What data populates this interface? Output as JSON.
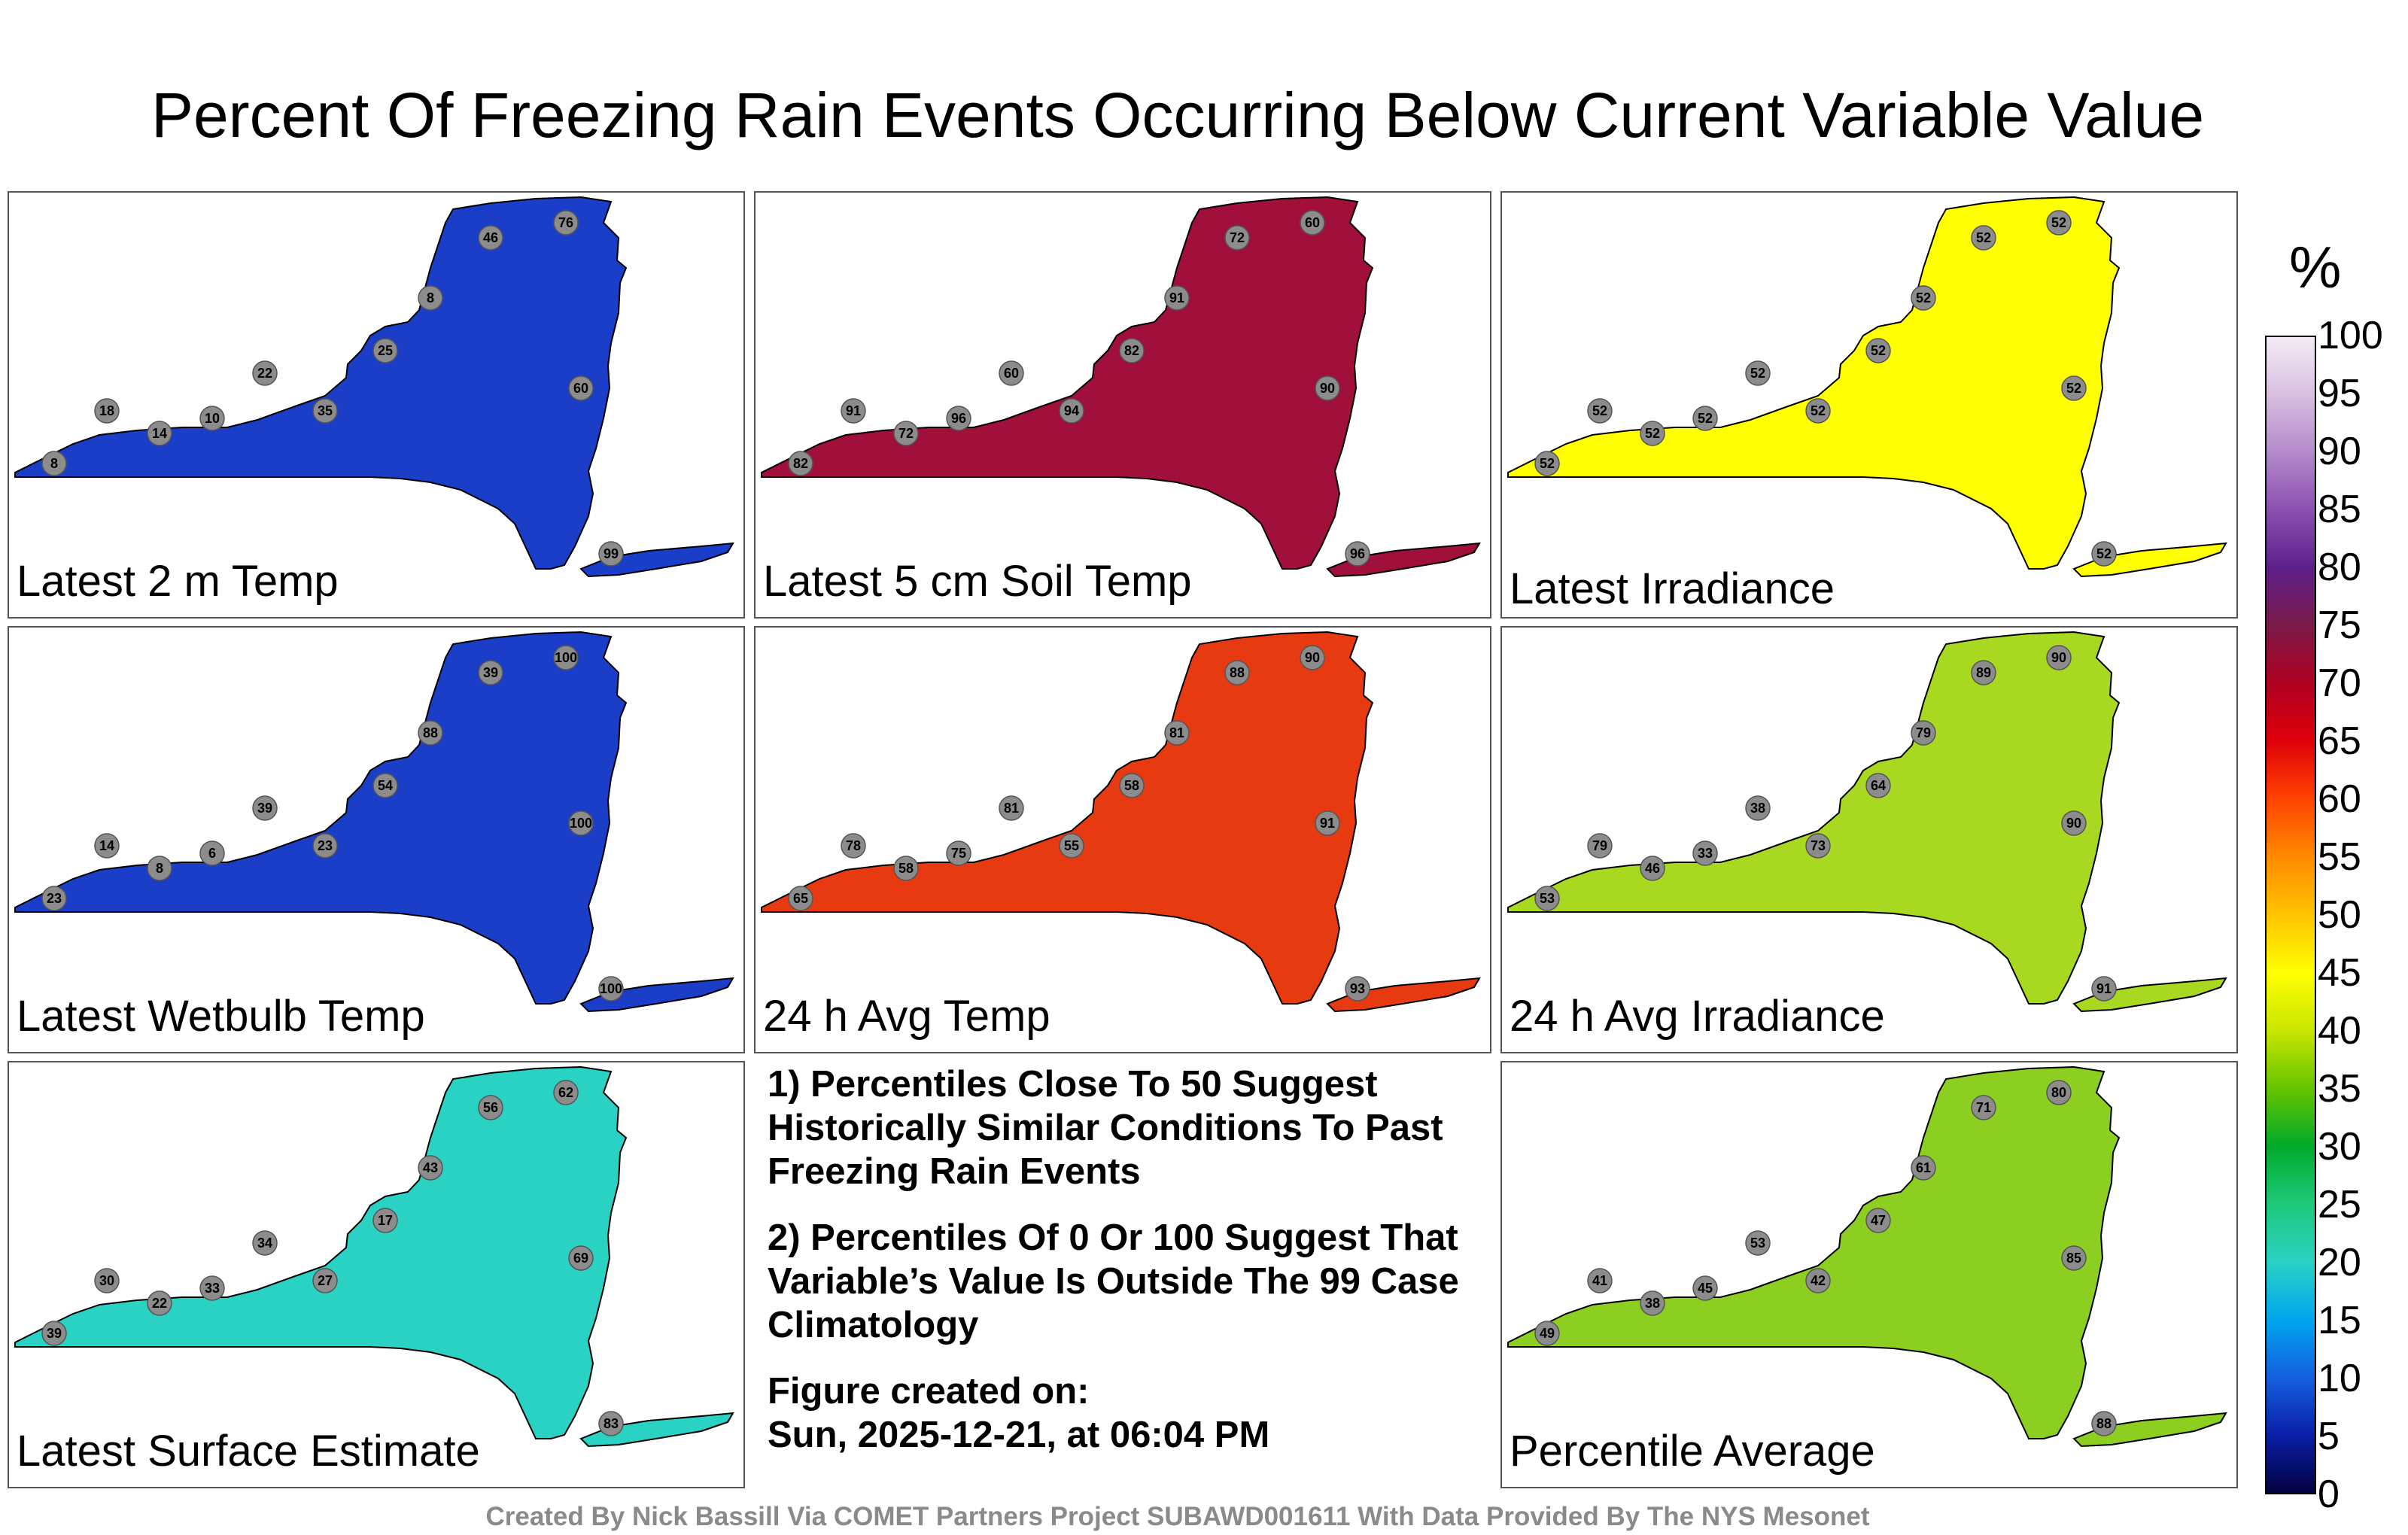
{
  "title": "Percent Of Freezing Rain Events Occurring Below Current Variable Value",
  "colorbar": {
    "unit": "%",
    "ticks": [
      "100",
      "95",
      "90",
      "85",
      "80",
      "75",
      "70",
      "65",
      "60",
      "55",
      "50",
      "45",
      "40",
      "35",
      "30",
      "25",
      "20",
      "15",
      "10",
      "5",
      "0"
    ],
    "colors": [
      "#f4ecf6",
      "#d8bfe0",
      "#b38acb",
      "#8a4fb0",
      "#5e1f8a",
      "#7a1a46",
      "#b00020",
      "#e0000a",
      "#ff4400",
      "#ff8a00",
      "#ffc400",
      "#ffff00",
      "#c8e600",
      "#66c400",
      "#00aa2a",
      "#1ec87a",
      "#2ad2c4",
      "#00a6ee",
      "#1460e0",
      "#0a1ea6",
      "#020240"
    ]
  },
  "panels": [
    {
      "label": "Latest 2 m Temp",
      "fill": "#1a3ec8",
      "stations": [
        "8",
        "18",
        "14",
        "10",
        "22",
        "35",
        "25",
        "8",
        "46",
        "76",
        "60",
        "99"
      ]
    },
    {
      "label": "Latest 5 cm Soil Temp",
      "fill": "#a0103a",
      "stations": [
        "82",
        "91",
        "72",
        "96",
        "60",
        "94",
        "82",
        "91",
        "72",
        "60",
        "90",
        "96"
      ]
    },
    {
      "label": "Latest Irradiance",
      "fill": "#ffff00",
      "stations": [
        "52",
        "52",
        "52",
        "52",
        "52",
        "52",
        "52",
        "52",
        "52",
        "52",
        "52",
        "52"
      ]
    },
    {
      "label": "Latest Wetbulb Temp",
      "fill": "#1a3ec8",
      "stations": [
        "23",
        "14",
        "8",
        "6",
        "39",
        "23",
        "54",
        "88",
        "39",
        "100",
        "100",
        "100"
      ]
    },
    {
      "label": "24 h Avg Temp",
      "fill": "#e83a10",
      "stations": [
        "65",
        "78",
        "58",
        "75",
        "81",
        "55",
        "58",
        "81",
        "88",
        "90",
        "91",
        "93"
      ]
    },
    {
      "label": "24 h Avg Irradiance",
      "fill": "#a8d820",
      "stations": [
        "53",
        "79",
        "46",
        "33",
        "38",
        "73",
        "64",
        "79",
        "89",
        "90",
        "90",
        "91"
      ]
    },
    {
      "label": "Latest Surface Estimate",
      "fill": "#2ad2c4",
      "stations": [
        "39",
        "30",
        "22",
        "33",
        "34",
        "27",
        "17",
        "43",
        "56",
        "62",
        "69",
        "83"
      ]
    },
    {
      "label": "Percentile Average",
      "fill": "#8ccf20",
      "stations": [
        "49",
        "41",
        "38",
        "45",
        "53",
        "42",
        "47",
        "61",
        "71",
        "80",
        "85",
        "88"
      ]
    }
  ],
  "notes": {
    "note1": "1) Percentiles Close To 50 Suggest Historically Similar Conditions To Past Freezing Rain Events",
    "note2": "2) Percentiles Of 0 Or 100 Suggest That Variable’s Value Is Outside The 99 Case Climatology",
    "figure_heading": "Figure created on:",
    "figure_date": "Sun, 2025-12-21, at 06:04 PM"
  },
  "footer": "Created By Nick Bassill Via COMET Partners Project SUBAWD001611 With Data Provided By The NYS Mesonet"
}
